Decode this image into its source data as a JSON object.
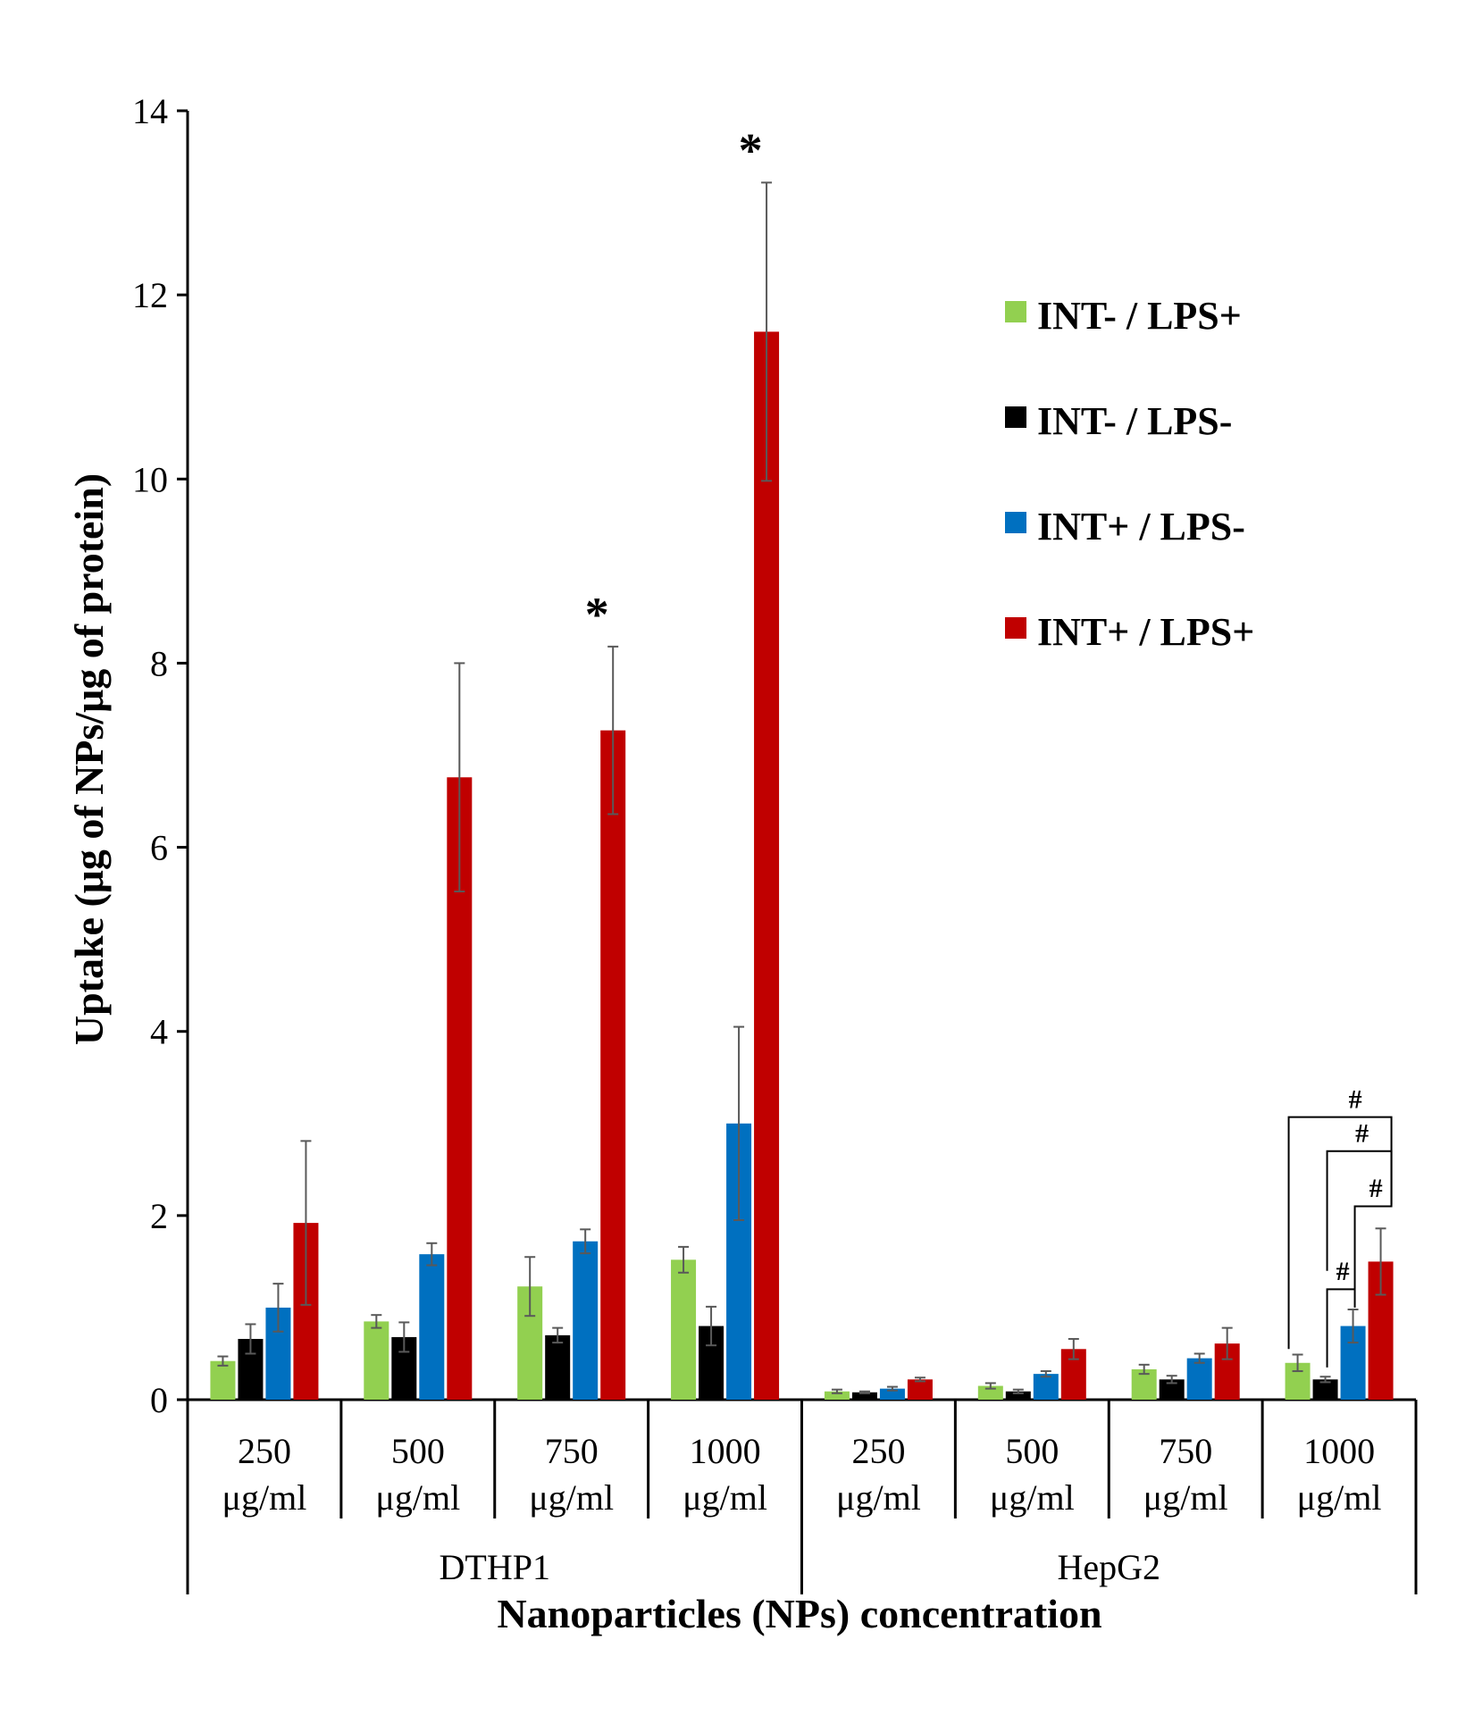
{
  "chart_data": {
    "type": "bar",
    "ylabel": "Uptake (μg of NPs/μg of protein)",
    "xlabel": "Nanoparticles (NPs) concentration",
    "ylim": [
      0,
      14
    ],
    "yticks": [
      "0",
      "2",
      "4",
      "6",
      "8",
      "10",
      "12",
      "14"
    ],
    "groups": [
      "DTHP1",
      "HepG2"
    ],
    "categories": [
      {
        "line1": "250",
        "line2": "μg/ml",
        "group": "DTHP1"
      },
      {
        "line1": "500",
        "line2": "μg/ml",
        "group": "DTHP1"
      },
      {
        "line1": "750",
        "line2": "μg/ml",
        "group": "DTHP1"
      },
      {
        "line1": "1000",
        "line2": "μg/ml",
        "group": "DTHP1"
      },
      {
        "line1": "250",
        "line2": "μg/ml",
        "group": "HepG2"
      },
      {
        "line1": "500",
        "line2": "μg/ml",
        "group": "HepG2"
      },
      {
        "line1": "750",
        "line2": "μg/ml",
        "group": "HepG2"
      },
      {
        "line1": "1000",
        "line2": "μg/ml",
        "group": "HepG2"
      }
    ],
    "series": [
      {
        "name": "INT- / LPS+",
        "color": "#92d050",
        "values": [
          0.42,
          0.85,
          1.23,
          1.52,
          0.09,
          0.15,
          0.33,
          0.4
        ],
        "errors": [
          0.05,
          0.07,
          0.32,
          0.14,
          0.02,
          0.03,
          0.05,
          0.09
        ]
      },
      {
        "name": "INT- / LPS-",
        "color": "#000000",
        "values": [
          0.66,
          0.68,
          0.7,
          0.8,
          0.08,
          0.09,
          0.22,
          0.22
        ],
        "errors": [
          0.16,
          0.16,
          0.08,
          0.21,
          0.01,
          0.02,
          0.04,
          0.03
        ]
      },
      {
        "name": "INT+ / LPS-",
        "color": "#0070c0",
        "values": [
          1.0,
          1.58,
          1.72,
          3.0,
          0.12,
          0.28,
          0.45,
          0.8
        ],
        "errors": [
          0.26,
          0.12,
          0.13,
          1.05,
          0.02,
          0.03,
          0.05,
          0.18
        ]
      },
      {
        "name": "INT+ / LPS+",
        "color": "#c00000",
        "values": [
          1.92,
          6.76,
          7.27,
          11.6,
          0.22,
          0.55,
          0.61,
          1.5
        ],
        "errors": [
          0.89,
          1.24,
          0.91,
          1.62,
          0.02,
          0.11,
          0.17,
          0.36
        ]
      }
    ],
    "legend_position": "top-right",
    "annotations": {
      "star": "*",
      "star_targets": [
        {
          "category": 2,
          "series": 3
        },
        {
          "category": 3,
          "series": 3
        }
      ],
      "hash": "#",
      "hash_category": 7
    }
  }
}
